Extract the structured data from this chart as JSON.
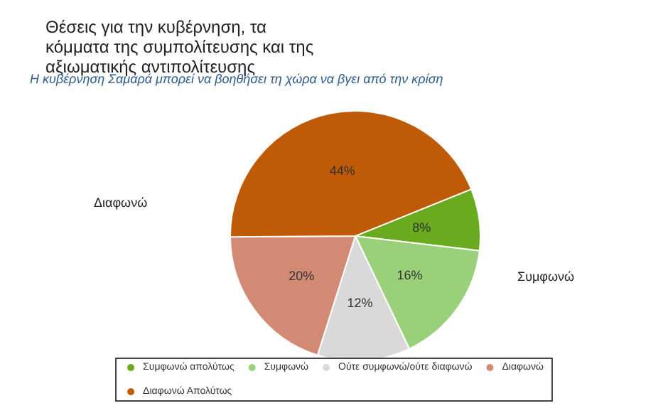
{
  "chart_data": {
    "type": "pie",
    "title": "Θέσεις για την κυβέρνηση, τα κόμματα της συμπολίτευσης και της αξιωματικής αντιπολίτευσης",
    "subtitle": "Η κυβέρνηση Σαμαρά μπορεί να βοηθήσει τη χώρα να βγει από την κρίση",
    "categories": [
      "Συμφωνώ απολύτως",
      "Συμφωνώ",
      "Ούτε συμφωνώ/ούτε διαφωνώ",
      "Διαφωνώ",
      "Διαφωνώ Απολύτως"
    ],
    "values": [
      8,
      16,
      12,
      20,
      44
    ],
    "value_labels": [
      "8%",
      "16%",
      "12%",
      "20%",
      "44%"
    ],
    "colors": [
      "#6aaa1e",
      "#9ad07a",
      "#d9d9d9",
      "#d38a75",
      "#bf5b07"
    ],
    "annotations": [
      "Διαφωνώ",
      "Συμφωνώ"
    ],
    "legend": "bottom"
  }
}
